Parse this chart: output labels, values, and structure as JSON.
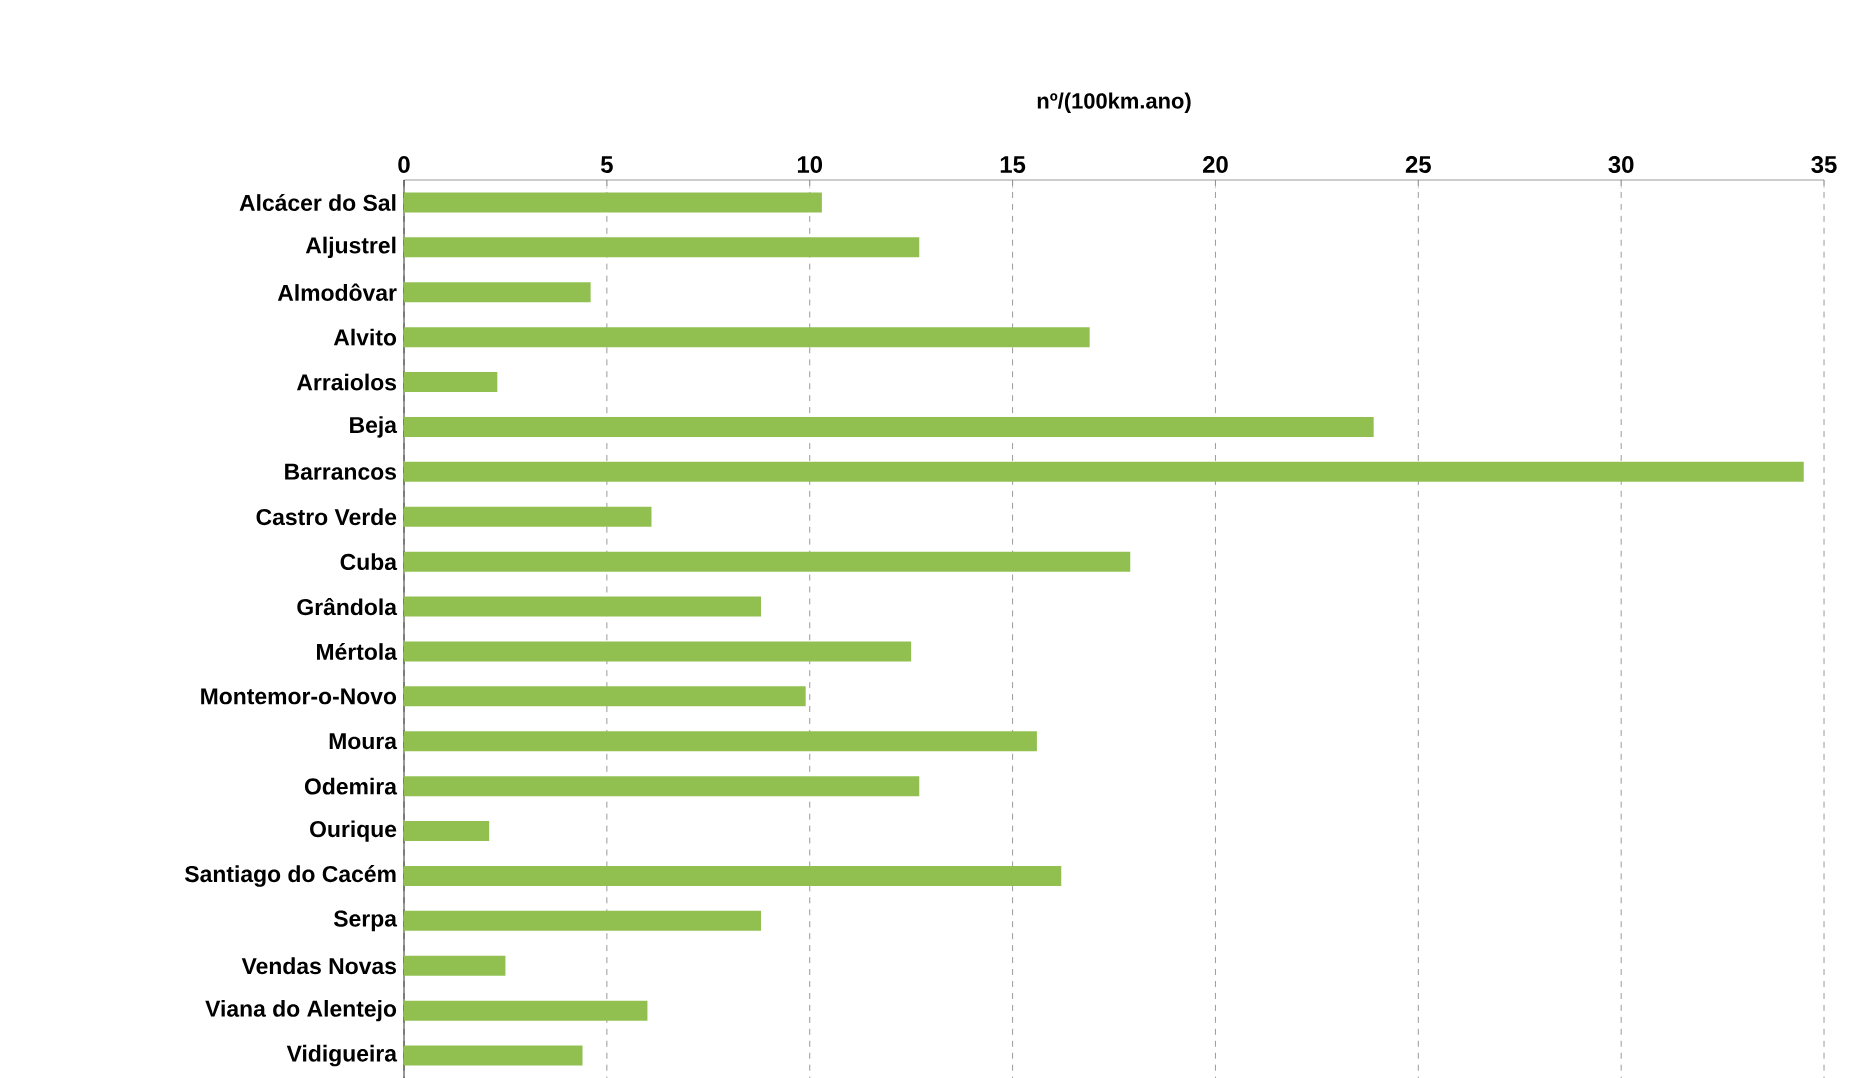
{
  "chart_data": {
    "type": "bar",
    "orientation": "horizontal",
    "xlabel": "nº/(100km.ano)",
    "categories": [
      "Alcácer do Sal",
      "Aljustrel",
      "Almodôvar",
      "Alvito",
      "Arraiolos",
      "Beja",
      "Barrancos",
      "Castro Verde",
      "Cuba",
      "Grândola",
      "Mértola",
      "Montemor-o-Novo",
      "Moura",
      "Odemira",
      "Ourique",
      "Santiago do Cacém",
      "Serpa",
      "Vendas Novas",
      "Viana do Alentejo",
      "Vidigueira"
    ],
    "values": [
      10.3,
      12.7,
      4.6,
      16.9,
      2.3,
      23.9,
      34.5,
      6.1,
      17.9,
      8.8,
      12.5,
      9.9,
      15.6,
      12.7,
      2.1,
      16.2,
      8.8,
      2.5,
      6.0,
      4.4
    ],
    "color": "#92c050",
    "xlim": [
      0,
      35
    ],
    "xticks": [
      0,
      5,
      10,
      15,
      20,
      25,
      30,
      35
    ],
    "grid": "x"
  }
}
